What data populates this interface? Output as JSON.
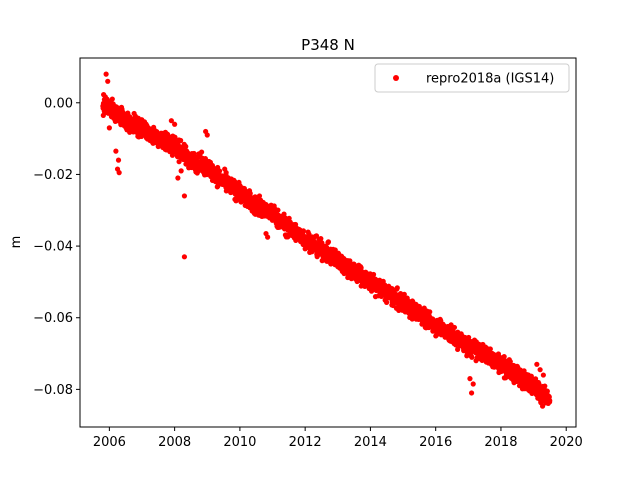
{
  "chart_data": {
    "type": "scatter",
    "title": "P348 N",
    "xlabel": "",
    "ylabel": "m",
    "xlim": [
      2005.1,
      2020.3
    ],
    "ylim": [
      -0.0905,
      0.0125
    ],
    "xticks": [
      2006,
      2008,
      2010,
      2012,
      2014,
      2016,
      2018,
      2020
    ],
    "xtick_labels": [
      "2006",
      "2008",
      "2010",
      "2012",
      "2014",
      "2016",
      "2018",
      "2020"
    ],
    "yticks": [
      0.0,
      -0.02,
      -0.04,
      -0.06,
      -0.08
    ],
    "ytick_labels": [
      "0.00",
      "−0.02",
      "−0.04",
      "−0.06",
      "−0.08"
    ],
    "grid": false,
    "legend_position": "top-right",
    "series": [
      {
        "name": "repro2018a (IGS14)",
        "color": "#ff0000",
        "marker": "circle",
        "trend": {
          "x": [
            2005.8,
            2006.0,
            2006.5,
            2007.0,
            2007.5,
            2008.0,
            2008.5,
            2009.0,
            2009.5,
            2010.0,
            2010.5,
            2011.0,
            2011.5,
            2012.0,
            2012.5,
            2013.0,
            2013.5,
            2014.0,
            2014.5,
            2015.0,
            2015.5,
            2016.0,
            2016.5,
            2017.0,
            2017.5,
            2018.0,
            2018.5,
            2019.0,
            2019.5
          ],
          "y": [
            -0.001,
            -0.001,
            -0.005,
            -0.007,
            -0.01,
            -0.012,
            -0.016,
            -0.018,
            -0.022,
            -0.025,
            -0.029,
            -0.031,
            -0.035,
            -0.038,
            -0.041,
            -0.044,
            -0.047,
            -0.05,
            -0.053,
            -0.056,
            -0.059,
            -0.062,
            -0.065,
            -0.068,
            -0.07,
            -0.073,
            -0.076,
            -0.079,
            -0.083
          ]
        },
        "outliers": [
          {
            "x": 2005.9,
            "y": 0.008
          },
          {
            "x": 2005.95,
            "y": 0.006
          },
          {
            "x": 2006.0,
            "y": -0.007
          },
          {
            "x": 2006.2,
            "y": -0.0135
          },
          {
            "x": 2006.25,
            "y": -0.0185
          },
          {
            "x": 2006.3,
            "y": -0.0195
          },
          {
            "x": 2006.28,
            "y": -0.016
          },
          {
            "x": 2008.3,
            "y": -0.026
          },
          {
            "x": 2008.3,
            "y": -0.043
          },
          {
            "x": 2008.2,
            "y": -0.019
          },
          {
            "x": 2008.1,
            "y": -0.021
          },
          {
            "x": 2007.9,
            "y": -0.005
          },
          {
            "x": 2008.0,
            "y": -0.006
          },
          {
            "x": 2008.95,
            "y": -0.008
          },
          {
            "x": 2009.0,
            "y": -0.009
          },
          {
            "x": 2010.8,
            "y": -0.0365
          },
          {
            "x": 2010.85,
            "y": -0.0375
          },
          {
            "x": 2010.6,
            "y": -0.026
          },
          {
            "x": 2011.4,
            "y": -0.034
          },
          {
            "x": 2017.1,
            "y": -0.081
          },
          {
            "x": 2017.15,
            "y": -0.0785
          },
          {
            "x": 2017.05,
            "y": -0.077
          },
          {
            "x": 2019.2,
            "y": -0.0745
          },
          {
            "x": 2019.3,
            "y": -0.076
          },
          {
            "x": 2019.1,
            "y": -0.073
          }
        ],
        "spread": 0.0022,
        "samples_per_year": 210
      }
    ]
  }
}
